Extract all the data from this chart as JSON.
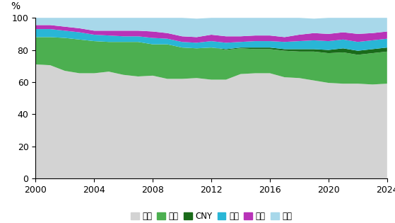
{
  "years": [
    2000,
    2001,
    2002,
    2003,
    2004,
    2005,
    2006,
    2007,
    2008,
    2009,
    2010,
    2011,
    2012,
    2013,
    2014,
    2015,
    2016,
    2017,
    2018,
    2019,
    2020,
    2021,
    2022,
    2023,
    2024
  ],
  "usd": [
    71.0,
    70.5,
    67.0,
    65.5,
    65.5,
    66.5,
    64.5,
    63.5,
    64.0,
    62.0,
    62.0,
    62.5,
    61.5,
    61.5,
    65.0,
    65.5,
    65.5,
    63.0,
    62.5,
    61.0,
    59.5,
    59.0,
    59.0,
    58.5,
    59.0
  ],
  "eur": [
    17.0,
    17.5,
    20.5,
    21.0,
    20.0,
    18.5,
    20.5,
    21.5,
    19.5,
    21.5,
    19.5,
    18.5,
    20.0,
    18.5,
    16.0,
    15.0,
    15.0,
    16.5,
    16.5,
    18.0,
    18.5,
    19.5,
    18.0,
    19.5,
    20.0
  ],
  "cny": [
    0.0,
    0.0,
    0.0,
    0.0,
    0.0,
    0.0,
    0.0,
    0.0,
    0.0,
    0.0,
    0.0,
    0.0,
    0.0,
    0.5,
    0.5,
    1.0,
    1.0,
    1.0,
    1.5,
    1.5,
    2.0,
    2.5,
    2.5,
    2.5,
    2.5
  ],
  "jpy": [
    5.0,
    5.0,
    4.5,
    4.5,
    4.0,
    4.0,
    3.5,
    3.5,
    4.0,
    3.5,
    3.5,
    3.5,
    4.0,
    4.0,
    3.5,
    4.0,
    4.0,
    4.5,
    5.0,
    5.5,
    5.5,
    5.5,
    5.5,
    5.5,
    5.5
  ],
  "gbp": [
    2.5,
    2.5,
    2.5,
    2.5,
    2.5,
    3.0,
    3.5,
    3.5,
    4.0,
    3.5,
    3.5,
    3.5,
    4.0,
    4.0,
    3.5,
    3.5,
    3.5,
    3.0,
    4.0,
    4.5,
    4.5,
    4.5,
    5.0,
    4.5,
    4.5
  ],
  "other": [
    4.5,
    4.5,
    5.5,
    6.5,
    8.0,
    8.0,
    8.0,
    8.0,
    8.5,
    9.5,
    11.5,
    11.5,
    10.5,
    11.5,
    11.5,
    11.0,
    11.0,
    12.0,
    10.5,
    9.0,
    10.0,
    9.0,
    10.0,
    9.5,
    8.5
  ],
  "colors": {
    "usd": "#d3d3d3",
    "eur": "#4caf50",
    "cny": "#1a6b1a",
    "jpy": "#29b6d6",
    "gbp": "#b833b8",
    "other": "#a8d8ea"
  },
  "labels": {
    "usd": "美元",
    "eur": "欧元",
    "cny": "CNY",
    "jpy": "日元",
    "gbp": "英镑",
    "other": "其他"
  },
  "ylabel": "%",
  "ylim": [
    0,
    100
  ],
  "yticks": [
    0,
    20,
    40,
    60,
    80,
    100
  ],
  "xticks": [
    2000,
    2004,
    2008,
    2012,
    2016,
    2020,
    2024
  ],
  "background_color": "#ffffff",
  "legend_fontsize": 8.5
}
